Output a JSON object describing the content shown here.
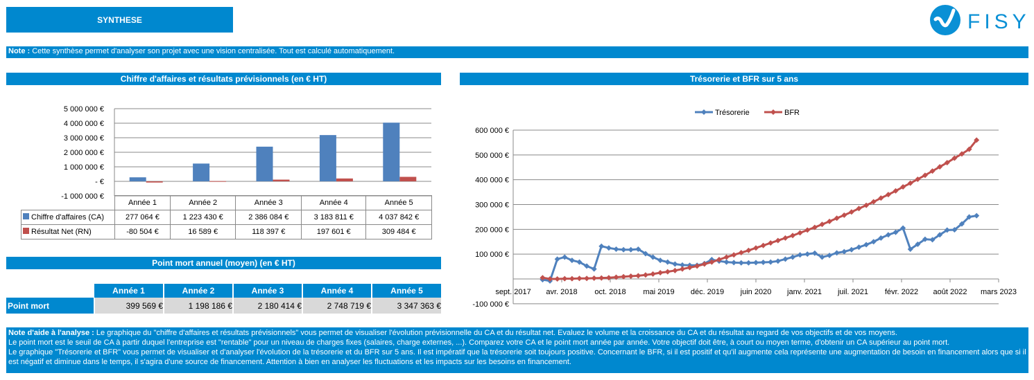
{
  "header": {
    "title": "SYNTHESE",
    "logo_text": "FISY"
  },
  "note": {
    "label": "Note :",
    "text": " Cette synthèse permet d'analyser son projet avec une vision centralisée. Tout est calculé automatiquement."
  },
  "ca_section": {
    "title": "Chiffre d'affaires et résultats prévisionnels (en  € HT)"
  },
  "tr_section": {
    "title": "Trésorerie et BFR sur 5 ans"
  },
  "pm_section": {
    "title": "Point mort annuel (moyen) (en € HT)"
  },
  "chart_data": [
    {
      "type": "bar",
      "categories": [
        "Année 1",
        "Année 2",
        "Année 3",
        "Année 4",
        "Année 5"
      ],
      "series": [
        {
          "name": "Chiffre d'affaires (CA)",
          "color": "#4f81bd",
          "values": [
            277064,
            1223430,
            2386084,
            3183811,
            4037842
          ],
          "labels": [
            "277 064 €",
            "1 223 430 €",
            "2 386 084 €",
            "3 183 811 €",
            "4 037 842 €"
          ]
        },
        {
          "name": "Résultat Net (RN)",
          "color": "#c0504d",
          "values": [
            -80504,
            16589,
            118397,
            197601,
            309484
          ],
          "labels": [
            "-80 504 €",
            "16 589 €",
            "118 397 €",
            "197 601 €",
            "309 484 €"
          ]
        }
      ],
      "ylim": [
        -1000000,
        5000000
      ],
      "yticks": [
        5000000,
        4000000,
        3000000,
        2000000,
        1000000,
        0,
        -1000000
      ],
      "ytick_labels": [
        "5 000 000 €",
        "4 000 000 €",
        "3 000 000 €",
        "2 000 000 €",
        "1 000 000 €",
        "-   €",
        "-1 000 000 €"
      ],
      "grid": true,
      "legend": "data-table"
    },
    {
      "type": "line",
      "x_start": "2018-01",
      "x_step": "month",
      "xtick_labels": [
        "sept. 2017",
        "avr. 2018",
        "oct. 2018",
        "mai 2019",
        "déc. 2019",
        "juin 2020",
        "janv. 2021",
        "juil. 2021",
        "févr. 2022",
        "août 2022",
        "mars 2023"
      ],
      "xlim": [
        "2017-09",
        "2023-03"
      ],
      "ylim": [
        -100000,
        600000
      ],
      "ytick_labels": [
        "600 000 €",
        "500 000 €",
        "400 000 €",
        "300 000 €",
        "200 000 €",
        "100 000 €",
        "",
        "-100 000 €"
      ],
      "legend": "top",
      "grid": true,
      "series": [
        {
          "name": "Trésorerie",
          "color": "#4f81bd",
          "values": [
            -3,
            -8,
            80,
            88,
            75,
            68,
            52,
            40,
            132,
            125,
            120,
            118,
            118,
            120,
            102,
            88,
            75,
            68,
            60,
            56,
            55,
            55,
            62,
            78,
            72,
            68,
            66,
            65,
            65,
            66,
            67,
            68,
            72,
            80,
            88,
            97,
            100,
            104,
            88,
            95,
            105,
            110,
            118,
            128,
            138,
            150,
            165,
            178,
            188,
            205,
            120,
            140,
            160,
            158,
            178,
            197,
            198,
            222,
            250,
            255
          ]
        },
        {
          "name": "BFR",
          "color": "#c0504d",
          "values": [
            5,
            0,
            0,
            1,
            1,
            2,
            2,
            3,
            4,
            5,
            7,
            9,
            11,
            13,
            16,
            20,
            25,
            29,
            34,
            40,
            46,
            52,
            60,
            68,
            78,
            88,
            97,
            106,
            115,
            125,
            135,
            145,
            155,
            165,
            175,
            186,
            197,
            208,
            220,
            232,
            245,
            257,
            270,
            284,
            297,
            311,
            326,
            340,
            355,
            371,
            386,
            402,
            418,
            435,
            452,
            469,
            487,
            504,
            523,
            560
          ]
        }
      ],
      "unit": "k€"
    }
  ],
  "point_mort": {
    "row_label": "Point mort",
    "headers": [
      "Année 1",
      "Année 2",
      "Année 3",
      "Année 4",
      "Année 5"
    ],
    "values": [
      "399 569 €",
      "1 198 186 €",
      "2 180 414 €",
      "2 748 719 €",
      "3 347 363 €"
    ]
  },
  "aide": {
    "label": "Note d'aide à l'analyse :",
    "lines": [
      " Le graphique du \"chiffre d'affaires et résultats prévisionnels\" vous permet de visualiser l'évolution prévisionnelle du CA et du résultat net. Evaluez le volume et la croissance du CA et du résultat au regard de vos objectifs et de vos moyens.",
      "Le point mort est le seuil de CA à partir duquel l'entreprise est \"rentable\" pour un niveau de charges fixes (salaires, charge externes, ...). Comparez votre CA et le point mort année par année. Votre objectif doit être, à court ou moyen terme, d'obtenir un CA supérieur au point mort.",
      "Le graphique \"Trésorerie et BFR\" vous permet de visualiser et d'analyser l'évolution de la trésorerie et du BFR sur 5 ans. Il est impératif que la trésorerie soit toujours positive. Concernant le BFR, si il  est positif et qu'il augmente cela représente une augmentation de besoin en financement alors que si il est négatif et diminue dans le temps, il s'agira d'une source de financement. Attention à bien en analyser les fluctuations et les impacts sur les besoins en financement."
    ]
  }
}
